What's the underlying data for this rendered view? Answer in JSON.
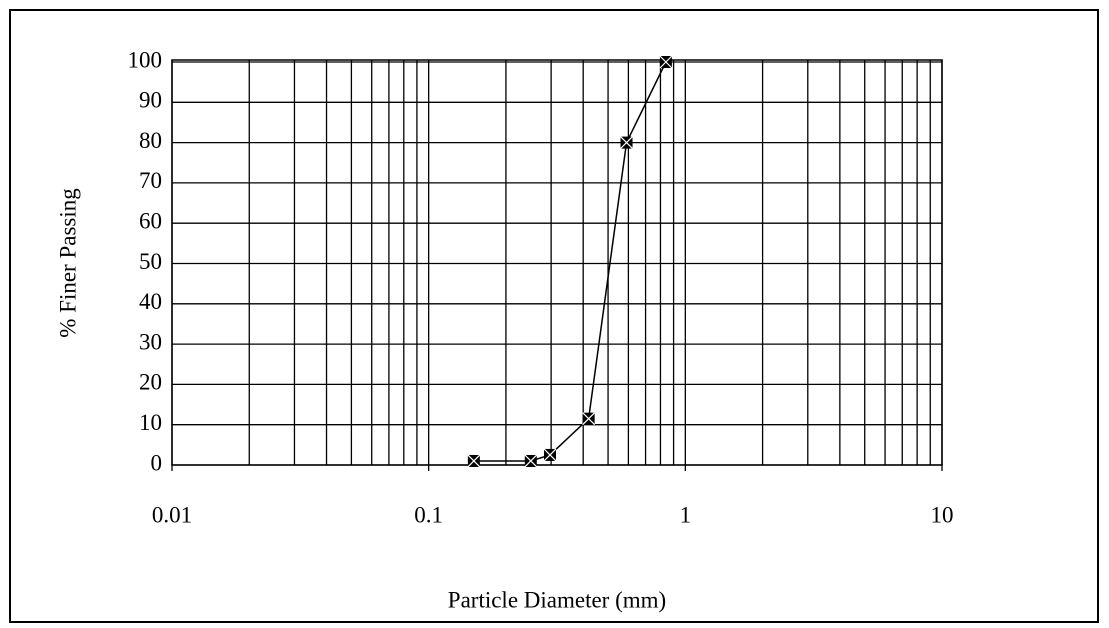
{
  "chart_data": {
    "type": "line",
    "x_label": "Particle Diameter (mm)",
    "y_label": "% Finer Passing",
    "x": [
      0.15,
      0.25,
      0.297,
      0.42,
      0.59,
      0.84
    ],
    "series": [
      {
        "color": "#000000",
        "values": [
          1,
          1,
          2.5,
          11.5,
          80,
          100
        ]
      }
    ],
    "xscale": "log",
    "xlim": [
      0.01,
      10
    ],
    "xticks": [
      0.01,
      0.1,
      1,
      10
    ],
    "ylim": [
      0,
      100
    ],
    "yticks": [
      0,
      10,
      20,
      30,
      40,
      50,
      60,
      70,
      80,
      90,
      100
    ],
    "grid": true,
    "minor_grid": true
  }
}
